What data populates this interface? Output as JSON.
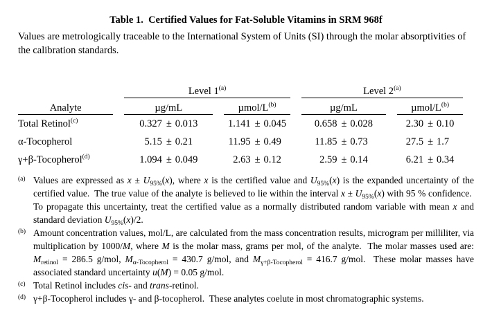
{
  "title": "Table 1.  Certified Values for Fat-Soluble Vitamins in SRM 968f",
  "subtitle": "Values are metrologically traceable to the International System of Units (SI) through the molar absorptivities of the calibration standards.",
  "table": {
    "plus_minus": "±",
    "spanners": [
      {
        "label": "Level 1",
        "marker": "(a)"
      },
      {
        "label": "Level 2",
        "marker": "(a)"
      }
    ],
    "columns": [
      {
        "label": "Analyte",
        "marker": ""
      },
      {
        "label": "µg/mL",
        "marker": ""
      },
      {
        "label": "µmol/L",
        "marker": "(b)"
      },
      {
        "label": "µg/mL",
        "marker": ""
      },
      {
        "label": "µmol/L",
        "marker": "(b)"
      }
    ],
    "rows": [
      {
        "analyte": "Total Retinol",
        "marker": "(c)",
        "values": [
          {
            "v": "0.327",
            "u": "0.013"
          },
          {
            "v": "1.141",
            "u": "0.045"
          },
          {
            "v": "0.658",
            "u": "0.028"
          },
          {
            "v": "2.30",
            "u": "0.10"
          }
        ]
      },
      {
        "analyte": "α-Tocopherol",
        "marker": "",
        "values": [
          {
            "v": "5.15",
            "u": "0.21"
          },
          {
            "v": "11.95",
            "u": "0.49"
          },
          {
            "v": "11.85",
            "u": "0.73"
          },
          {
            "v": "27.5",
            "u": "1.7"
          }
        ]
      },
      {
        "analyte": "γ+β-Tocopherol",
        "marker": "(d)",
        "values": [
          {
            "v": "1.094",
            "u": "0.049"
          },
          {
            "v": "2.63",
            "u": "0.12"
          },
          {
            "v": "2.59",
            "u": "0.14"
          },
          {
            "v": "6.21",
            "u": "0.34"
          }
        ]
      }
    ]
  },
  "footnotes": [
    {
      "marker": "(a)",
      "segments": [
        {
          "t": "Values are expressed as "
        },
        {
          "t": "x",
          "s": "i"
        },
        {
          "t": " ± "
        },
        {
          "t": "U",
          "s": "i"
        },
        {
          "t": "95%",
          "s": "sub"
        },
        {
          "t": "("
        },
        {
          "t": "x",
          "s": "i"
        },
        {
          "t": "), where "
        },
        {
          "t": "x",
          "s": "i"
        },
        {
          "t": " is the certified value and "
        },
        {
          "t": "U",
          "s": "i"
        },
        {
          "t": "95%",
          "s": "sub"
        },
        {
          "t": "("
        },
        {
          "t": "x",
          "s": "i"
        },
        {
          "t": ") is the expanded uncertainty of the certified value.  The true value of the analyte is believed to lie within the interval "
        },
        {
          "t": "x",
          "s": "i"
        },
        {
          "t": " ± "
        },
        {
          "t": "U",
          "s": "i"
        },
        {
          "t": "95%",
          "s": "sub"
        },
        {
          "t": "("
        },
        {
          "t": "x",
          "s": "i"
        },
        {
          "t": ") with 95 % confidence.  To propagate this uncertainty, treat the certified value as a normally distributed random variable with mean "
        },
        {
          "t": "x",
          "s": "i"
        },
        {
          "t": " and standard deviation "
        },
        {
          "t": "U",
          "s": "i"
        },
        {
          "t": "95%",
          "s": "sub"
        },
        {
          "t": "("
        },
        {
          "t": "x",
          "s": "i"
        },
        {
          "t": ")/2."
        }
      ]
    },
    {
      "marker": "(b)",
      "segments": [
        {
          "t": "Amount concentration values, mol/L, are calculated from the mass concentration results, microgram per milliliter, via multiplication by 1000/"
        },
        {
          "t": "M",
          "s": "i"
        },
        {
          "t": ", where "
        },
        {
          "t": "M",
          "s": "i"
        },
        {
          "t": " is the molar mass, grams per mol, of the analyte.  The molar masses used are: "
        },
        {
          "t": "M",
          "s": "i"
        },
        {
          "t": "retinol",
          "s": "sub"
        },
        {
          "t": " = 286.5 g/mol, "
        },
        {
          "t": "M",
          "s": "i"
        },
        {
          "t": "α-Tocopherol",
          "s": "sub"
        },
        {
          "t": " = 430.7 g/mol, and "
        },
        {
          "t": "M",
          "s": "i"
        },
        {
          "t": "γ+β-Tocopherol",
          "s": "sub"
        },
        {
          "t": " = 416.7 g/mol.  These molar masses have associated standard uncertainty "
        },
        {
          "t": "u",
          "s": "i"
        },
        {
          "t": "("
        },
        {
          "t": "M",
          "s": "i"
        },
        {
          "t": ") = 0.05 g/mol."
        }
      ]
    },
    {
      "marker": "(c)",
      "segments": [
        {
          "t": "Total Retinol includes "
        },
        {
          "t": "cis-",
          "s": "i"
        },
        {
          "t": " and "
        },
        {
          "t": "trans",
          "s": "i"
        },
        {
          "t": "-retinol."
        }
      ]
    },
    {
      "marker": "(d)",
      "segments": [
        {
          "t": "γ+β-Tocopherol includes γ- and β-tocopherol.  These analytes coelute in most chromatographic systems."
        }
      ]
    }
  ]
}
